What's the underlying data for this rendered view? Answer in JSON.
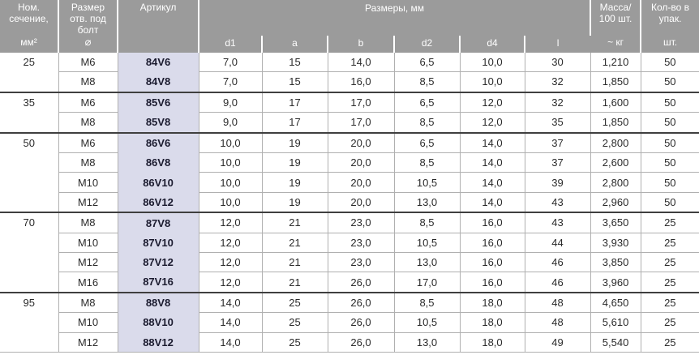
{
  "colors": {
    "header_bg": "#9b9b9b",
    "header_text": "#ffffff",
    "article_bg": "#dadbeb",
    "article_text": "#1a1a2e",
    "body_text": "#2b2b2b",
    "thin_line": "#b0b0b0",
    "group_line": "#3f3f3f"
  },
  "table": {
    "header": {
      "section": {
        "title": "Ном.\nсечение,",
        "unit": "мм²"
      },
      "bolt": {
        "title": "Размер\nотв. под\nболт",
        "unit": "⌀"
      },
      "article": {
        "title": "Артикул"
      },
      "dimensions": {
        "title": "Размеры, мм",
        "subs": [
          "d1",
          "a",
          "b",
          "d2",
          "d4",
          "l"
        ]
      },
      "mass": {
        "title": "Масса/\n100 шт.",
        "unit": "~ кг"
      },
      "pack": {
        "title": "Кол-во в\nупак.",
        "unit": "шт."
      }
    },
    "groups": [
      {
        "section": "25",
        "rows": [
          [
            "M6",
            "84V6",
            "7,0",
            "15",
            "14,0",
            "6,5",
            "10,0",
            "30",
            "1,210",
            "50"
          ],
          [
            "M8",
            "84V8",
            "7,0",
            "15",
            "16,0",
            "8,5",
            "10,0",
            "32",
            "1,850",
            "50"
          ]
        ]
      },
      {
        "section": "35",
        "rows": [
          [
            "M6",
            "85V6",
            "9,0",
            "17",
            "17,0",
            "6,5",
            "12,0",
            "32",
            "1,600",
            "50"
          ],
          [
            "M8",
            "85V8",
            "9,0",
            "17",
            "17,0",
            "8,5",
            "12,0",
            "35",
            "1,850",
            "50"
          ]
        ]
      },
      {
        "section": "50",
        "rows": [
          [
            "M6",
            "86V6",
            "10,0",
            "19",
            "20,0",
            "6,5",
            "14,0",
            "37",
            "2,800",
            "50"
          ],
          [
            "M8",
            "86V8",
            "10,0",
            "19",
            "20,0",
            "8,5",
            "14,0",
            "37",
            "2,600",
            "50"
          ],
          [
            "M10",
            "86V10",
            "10,0",
            "19",
            "20,0",
            "10,5",
            "14,0",
            "39",
            "2,800",
            "50"
          ],
          [
            "M12",
            "86V12",
            "10,0",
            "19",
            "20,0",
            "13,0",
            "14,0",
            "43",
            "2,960",
            "50"
          ]
        ]
      },
      {
        "section": "70",
        "rows": [
          [
            "M8",
            "87V8",
            "12,0",
            "21",
            "23,0",
            "8,5",
            "16,0",
            "43",
            "3,650",
            "25"
          ],
          [
            "M10",
            "87V10",
            "12,0",
            "21",
            "23,0",
            "10,5",
            "16,0",
            "44",
            "3,930",
            "25"
          ],
          [
            "M12",
            "87V12",
            "12,0",
            "21",
            "23,0",
            "13,0",
            "16,0",
            "46",
            "3,850",
            "25"
          ],
          [
            "M16",
            "87V16",
            "12,0",
            "21",
            "26,0",
            "17,0",
            "16,0",
            "46",
            "3,960",
            "25"
          ]
        ]
      },
      {
        "section": "95",
        "rows": [
          [
            "M8",
            "88V8",
            "14,0",
            "25",
            "26,0",
            "8,5",
            "18,0",
            "48",
            "4,650",
            "25"
          ],
          [
            "M10",
            "88V10",
            "14,0",
            "25",
            "26,0",
            "10,5",
            "18,0",
            "48",
            "5,610",
            "25"
          ],
          [
            "M12",
            "88V12",
            "14,0",
            "25",
            "26,0",
            "13,0",
            "18,0",
            "49",
            "5,540",
            "25"
          ]
        ]
      }
    ]
  }
}
